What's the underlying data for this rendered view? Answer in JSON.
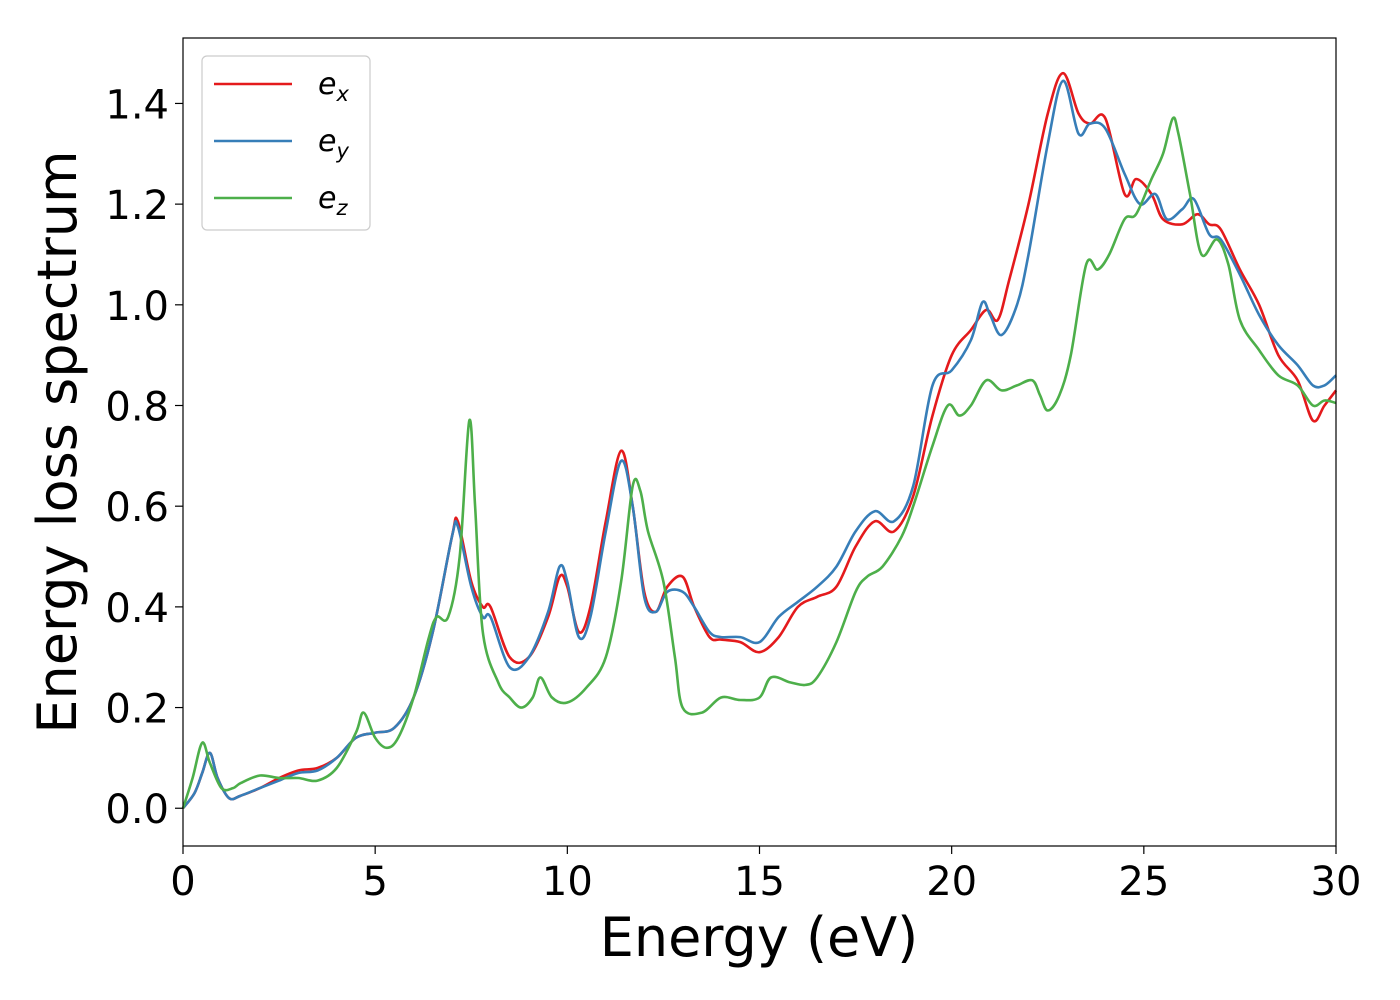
{
  "chart_data": {
    "type": "line",
    "xlabel": "Energy (eV)",
    "ylabel": "Energy loss spectrum",
    "xlim": [
      0,
      30
    ],
    "ylim": [
      -0.075,
      1.53
    ],
    "xticks": [
      0,
      5,
      10,
      15,
      20,
      25,
      30
    ],
    "yticks": [
      0.0,
      0.2,
      0.4,
      0.6,
      0.8,
      1.0,
      1.2,
      1.4
    ],
    "xtick_labels": [
      "0",
      "5",
      "10",
      "15",
      "20",
      "25",
      "30"
    ],
    "ytick_labels": [
      "0.0",
      "0.2",
      "0.4",
      "0.6",
      "0.8",
      "1.0",
      "1.2",
      "1.4"
    ],
    "grid": false,
    "legend": "top-left",
    "series": [
      {
        "name": "e",
        "subscript": "x",
        "color": "#e41a1c",
        "points": [
          [
            0,
            0
          ],
          [
            0.3,
            0.03
          ],
          [
            0.5,
            0.07
          ],
          [
            0.7,
            0.11
          ],
          [
            0.9,
            0.06
          ],
          [
            1.2,
            0.02
          ],
          [
            1.5,
            0.025
          ],
          [
            2.0,
            0.04
          ],
          [
            2.5,
            0.06
          ],
          [
            3.0,
            0.075
          ],
          [
            3.5,
            0.08
          ],
          [
            4.0,
            0.1
          ],
          [
            4.5,
            0.14
          ],
          [
            5.0,
            0.15
          ],
          [
            5.5,
            0.16
          ],
          [
            6.0,
            0.22
          ],
          [
            6.5,
            0.35
          ],
          [
            7.0,
            0.54
          ],
          [
            7.15,
            0.57
          ],
          [
            7.5,
            0.45
          ],
          [
            7.8,
            0.4
          ],
          [
            8.0,
            0.4
          ],
          [
            8.5,
            0.3
          ],
          [
            9.0,
            0.3
          ],
          [
            9.5,
            0.38
          ],
          [
            9.8,
            0.46
          ],
          [
            10.0,
            0.44
          ],
          [
            10.3,
            0.35
          ],
          [
            10.6,
            0.4
          ],
          [
            11.0,
            0.57
          ],
          [
            11.4,
            0.71
          ],
          [
            11.7,
            0.6
          ],
          [
            12.0,
            0.43
          ],
          [
            12.3,
            0.39
          ],
          [
            12.6,
            0.44
          ],
          [
            13.0,
            0.46
          ],
          [
            13.3,
            0.4
          ],
          [
            13.7,
            0.34
          ],
          [
            14.0,
            0.335
          ],
          [
            14.5,
            0.33
          ],
          [
            15.0,
            0.31
          ],
          [
            15.5,
            0.34
          ],
          [
            16.0,
            0.4
          ],
          [
            16.5,
            0.42
          ],
          [
            17.0,
            0.44
          ],
          [
            17.5,
            0.52
          ],
          [
            18.0,
            0.57
          ],
          [
            18.5,
            0.55
          ],
          [
            19.0,
            0.62
          ],
          [
            19.5,
            0.78
          ],
          [
            20.0,
            0.9
          ],
          [
            20.5,
            0.95
          ],
          [
            20.9,
            0.99
          ],
          [
            21.2,
            0.97
          ],
          [
            21.5,
            1.05
          ],
          [
            22.0,
            1.2
          ],
          [
            22.5,
            1.38
          ],
          [
            22.9,
            1.46
          ],
          [
            23.3,
            1.38
          ],
          [
            23.6,
            1.36
          ],
          [
            24.0,
            1.37
          ],
          [
            24.5,
            1.22
          ],
          [
            24.8,
            1.25
          ],
          [
            25.2,
            1.22
          ],
          [
            25.5,
            1.17
          ],
          [
            26.0,
            1.16
          ],
          [
            26.4,
            1.18
          ],
          [
            26.7,
            1.16
          ],
          [
            27.0,
            1.15
          ],
          [
            27.5,
            1.07
          ],
          [
            28.0,
            1.0
          ],
          [
            28.5,
            0.9
          ],
          [
            29.0,
            0.85
          ],
          [
            29.4,
            0.77
          ],
          [
            29.7,
            0.8
          ],
          [
            30.0,
            0.83
          ]
        ]
      },
      {
        "name": "e",
        "subscript": "y",
        "color": "#377eb8",
        "points": [
          [
            0,
            0
          ],
          [
            0.3,
            0.03
          ],
          [
            0.5,
            0.07
          ],
          [
            0.7,
            0.11
          ],
          [
            0.9,
            0.06
          ],
          [
            1.2,
            0.02
          ],
          [
            1.5,
            0.025
          ],
          [
            2.0,
            0.04
          ],
          [
            2.5,
            0.055
          ],
          [
            3.0,
            0.07
          ],
          [
            3.5,
            0.075
          ],
          [
            4.0,
            0.1
          ],
          [
            4.5,
            0.14
          ],
          [
            5.0,
            0.15
          ],
          [
            5.5,
            0.16
          ],
          [
            6.0,
            0.22
          ],
          [
            6.5,
            0.35
          ],
          [
            7.0,
            0.54
          ],
          [
            7.15,
            0.56
          ],
          [
            7.5,
            0.44
          ],
          [
            7.8,
            0.38
          ],
          [
            8.0,
            0.38
          ],
          [
            8.5,
            0.28
          ],
          [
            9.0,
            0.3
          ],
          [
            9.5,
            0.39
          ],
          [
            9.8,
            0.48
          ],
          [
            10.0,
            0.45
          ],
          [
            10.3,
            0.34
          ],
          [
            10.6,
            0.38
          ],
          [
            11.0,
            0.55
          ],
          [
            11.4,
            0.69
          ],
          [
            11.7,
            0.6
          ],
          [
            12.0,
            0.42
          ],
          [
            12.3,
            0.39
          ],
          [
            12.6,
            0.43
          ],
          [
            13.0,
            0.43
          ],
          [
            13.3,
            0.4
          ],
          [
            13.7,
            0.35
          ],
          [
            14.0,
            0.34
          ],
          [
            14.5,
            0.34
          ],
          [
            15.0,
            0.33
          ],
          [
            15.5,
            0.38
          ],
          [
            16.0,
            0.41
          ],
          [
            16.5,
            0.44
          ],
          [
            17.0,
            0.48
          ],
          [
            17.5,
            0.55
          ],
          [
            18.0,
            0.59
          ],
          [
            18.5,
            0.57
          ],
          [
            19.0,
            0.64
          ],
          [
            19.5,
            0.84
          ],
          [
            20.0,
            0.87
          ],
          [
            20.5,
            0.93
          ],
          [
            20.8,
            1.005
          ],
          [
            21.0,
            0.98
          ],
          [
            21.3,
            0.94
          ],
          [
            21.7,
            1.0
          ],
          [
            22.0,
            1.1
          ],
          [
            22.5,
            1.32
          ],
          [
            22.9,
            1.445
          ],
          [
            23.3,
            1.34
          ],
          [
            23.6,
            1.36
          ],
          [
            24.0,
            1.35
          ],
          [
            24.5,
            1.26
          ],
          [
            24.9,
            1.2
          ],
          [
            25.3,
            1.22
          ],
          [
            25.6,
            1.17
          ],
          [
            26.0,
            1.19
          ],
          [
            26.3,
            1.21
          ],
          [
            26.7,
            1.14
          ],
          [
            27.0,
            1.13
          ],
          [
            27.5,
            1.06
          ],
          [
            28.0,
            0.98
          ],
          [
            28.5,
            0.92
          ],
          [
            29.0,
            0.88
          ],
          [
            29.4,
            0.84
          ],
          [
            29.7,
            0.84
          ],
          [
            30.0,
            0.86
          ]
        ]
      },
      {
        "name": "e",
        "subscript": "z",
        "color": "#4daf4a",
        "points": [
          [
            0,
            0
          ],
          [
            0.25,
            0.06
          ],
          [
            0.5,
            0.13
          ],
          [
            0.7,
            0.09
          ],
          [
            1.0,
            0.04
          ],
          [
            1.3,
            0.04
          ],
          [
            1.5,
            0.05
          ],
          [
            2.0,
            0.065
          ],
          [
            2.5,
            0.06
          ],
          [
            3.0,
            0.06
          ],
          [
            3.5,
            0.055
          ],
          [
            4.0,
            0.08
          ],
          [
            4.5,
            0.15
          ],
          [
            4.7,
            0.19
          ],
          [
            5.0,
            0.14
          ],
          [
            5.3,
            0.12
          ],
          [
            5.6,
            0.14
          ],
          [
            6.0,
            0.22
          ],
          [
            6.4,
            0.34
          ],
          [
            6.6,
            0.38
          ],
          [
            6.9,
            0.38
          ],
          [
            7.2,
            0.5
          ],
          [
            7.45,
            0.77
          ],
          [
            7.6,
            0.6
          ],
          [
            7.8,
            0.35
          ],
          [
            8.2,
            0.25
          ],
          [
            8.5,
            0.22
          ],
          [
            8.8,
            0.2
          ],
          [
            9.1,
            0.22
          ],
          [
            9.3,
            0.26
          ],
          [
            9.6,
            0.22
          ],
          [
            10.0,
            0.21
          ],
          [
            10.5,
            0.24
          ],
          [
            11.0,
            0.3
          ],
          [
            11.4,
            0.45
          ],
          [
            11.7,
            0.64
          ],
          [
            11.9,
            0.63
          ],
          [
            12.1,
            0.55
          ],
          [
            12.5,
            0.45
          ],
          [
            12.8,
            0.3
          ],
          [
            13.0,
            0.2
          ],
          [
            13.5,
            0.19
          ],
          [
            14.0,
            0.22
          ],
          [
            14.5,
            0.215
          ],
          [
            15.0,
            0.22
          ],
          [
            15.3,
            0.26
          ],
          [
            15.8,
            0.25
          ],
          [
            16.2,
            0.245
          ],
          [
            16.5,
            0.26
          ],
          [
            17.0,
            0.33
          ],
          [
            17.5,
            0.43
          ],
          [
            17.8,
            0.46
          ],
          [
            18.2,
            0.48
          ],
          [
            18.7,
            0.54
          ],
          [
            19.0,
            0.6
          ],
          [
            19.5,
            0.72
          ],
          [
            19.9,
            0.8
          ],
          [
            20.2,
            0.78
          ],
          [
            20.5,
            0.8
          ],
          [
            20.9,
            0.85
          ],
          [
            21.3,
            0.83
          ],
          [
            21.7,
            0.84
          ],
          [
            22.1,
            0.85
          ],
          [
            22.3,
            0.82
          ],
          [
            22.5,
            0.79
          ],
          [
            22.8,
            0.82
          ],
          [
            23.1,
            0.9
          ],
          [
            23.5,
            1.08
          ],
          [
            23.8,
            1.07
          ],
          [
            24.1,
            1.1
          ],
          [
            24.5,
            1.17
          ],
          [
            24.8,
            1.18
          ],
          [
            25.2,
            1.25
          ],
          [
            25.5,
            1.3
          ],
          [
            25.75,
            1.37
          ],
          [
            25.9,
            1.34
          ],
          [
            26.2,
            1.22
          ],
          [
            26.5,
            1.1
          ],
          [
            26.9,
            1.13
          ],
          [
            27.2,
            1.08
          ],
          [
            27.5,
            0.97
          ],
          [
            28.0,
            0.91
          ],
          [
            28.5,
            0.86
          ],
          [
            29.0,
            0.84
          ],
          [
            29.4,
            0.8
          ],
          [
            29.7,
            0.81
          ],
          [
            30.0,
            0.805
          ]
        ]
      }
    ]
  }
}
